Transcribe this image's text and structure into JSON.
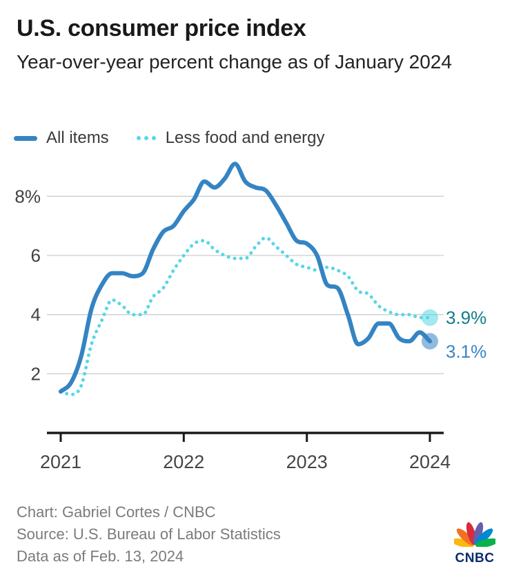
{
  "header": {
    "title": "U.S. consumer price index",
    "subtitle": "Year-over-year percent change as of January 2024"
  },
  "legend": [
    {
      "label": "All items",
      "color": "#3484c3",
      "style": "solid"
    },
    {
      "label": "Less food and energy",
      "color": "#56d7e6",
      "style": "dotted"
    }
  ],
  "chart_data": {
    "type": "line",
    "title": "U.S. consumer price index",
    "subtitle": "Year-over-year percent change as of January 2024",
    "x_unit": "month",
    "x": [
      "2021-01",
      "2021-02",
      "2021-03",
      "2021-04",
      "2021-05",
      "2021-06",
      "2021-07",
      "2021-08",
      "2021-09",
      "2021-10",
      "2021-11",
      "2021-12",
      "2022-01",
      "2022-02",
      "2022-03",
      "2022-04",
      "2022-05",
      "2022-06",
      "2022-07",
      "2022-08",
      "2022-09",
      "2022-10",
      "2022-11",
      "2022-12",
      "2023-01",
      "2023-02",
      "2023-03",
      "2023-04",
      "2023-05",
      "2023-06",
      "2023-07",
      "2023-08",
      "2023-09",
      "2023-10",
      "2023-11",
      "2023-12",
      "2024-01"
    ],
    "xticks": [
      "2021",
      "2022",
      "2023",
      "2024"
    ],
    "yticks": [
      {
        "label": "8%",
        "value": 8
      },
      {
        "label": "6",
        "value": 6
      },
      {
        "label": "4",
        "value": 4
      },
      {
        "label": "2",
        "value": 2
      }
    ],
    "ylim": [
      0,
      9.3
    ],
    "grid": true,
    "legend_position": "top-left",
    "series": [
      {
        "name": "Less food and energy",
        "style": "dotted",
        "color": "#56d7e6",
        "end_label": "3.9%",
        "end_label_color": "#117c8c",
        "values": [
          1.4,
          1.3,
          1.6,
          3.0,
          3.8,
          4.5,
          4.3,
          4.0,
          4.0,
          4.6,
          4.9,
          5.5,
          6.0,
          6.4,
          6.5,
          6.2,
          6.0,
          5.9,
          5.9,
          6.3,
          6.6,
          6.3,
          6.0,
          5.7,
          5.6,
          5.5,
          5.6,
          5.5,
          5.3,
          4.8,
          4.7,
          4.3,
          4.1,
          4.0,
          4.0,
          3.9,
          3.9
        ]
      },
      {
        "name": "All items",
        "style": "solid",
        "color": "#3484c3",
        "end_label": "3.1%",
        "end_label_color": "#3a86c5",
        "values": [
          1.4,
          1.7,
          2.6,
          4.2,
          5.0,
          5.4,
          5.4,
          5.3,
          5.4,
          6.2,
          6.8,
          7.0,
          7.5,
          7.9,
          8.5,
          8.3,
          8.6,
          9.1,
          8.5,
          8.3,
          8.2,
          7.7,
          7.1,
          6.5,
          6.4,
          6.0,
          5.0,
          4.9,
          4.0,
          3.0,
          3.2,
          3.7,
          3.7,
          3.2,
          3.1,
          3.4,
          3.1
        ]
      }
    ]
  },
  "footer": {
    "credit": "Chart: Gabriel Cortes / CNBC",
    "source": "Source: U.S. Bureau of Labor Statistics",
    "as_of": "Data as of Feb. 13, 2024"
  },
  "logo": {
    "wordmark": "CNBC",
    "feather_colors": [
      "#FCB711",
      "#F37021",
      "#DB2A3C",
      "#6460AA",
      "#0089D0",
      "#0DB14B"
    ]
  }
}
